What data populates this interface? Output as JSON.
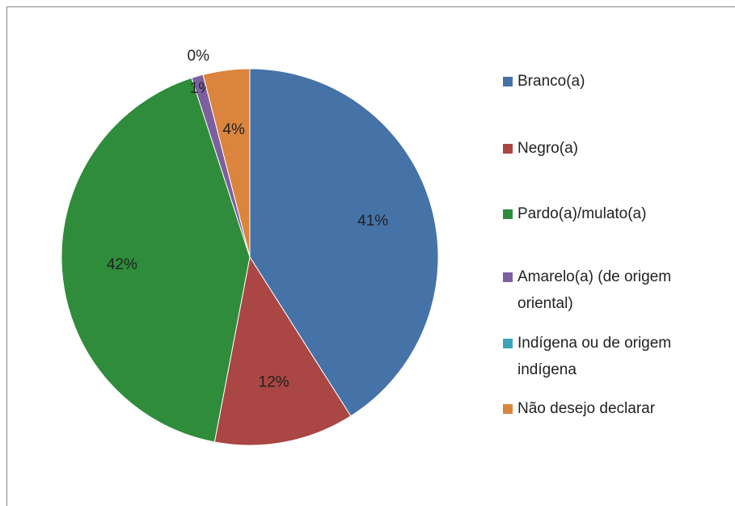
{
  "chart_data": {
    "type": "pie",
    "categories": [
      "Branco(a)",
      "Negro(a)",
      "Pardo(a)/mulato(a)",
      "Amarelo(a) (de origem oriental)",
      "Indígena ou de origem indígena",
      "Não desejo declarar"
    ],
    "values": [
      41,
      12,
      42,
      1,
      0,
      4
    ],
    "value_labels": [
      "41%",
      "12%",
      "42%",
      "1%",
      "0%",
      "4%"
    ],
    "colors": [
      "#4572a7",
      "#aa4643",
      "#2f8c3a",
      "#7d5fa0",
      "#3ca4b9",
      "#db843d"
    ],
    "legend": "right"
  }
}
